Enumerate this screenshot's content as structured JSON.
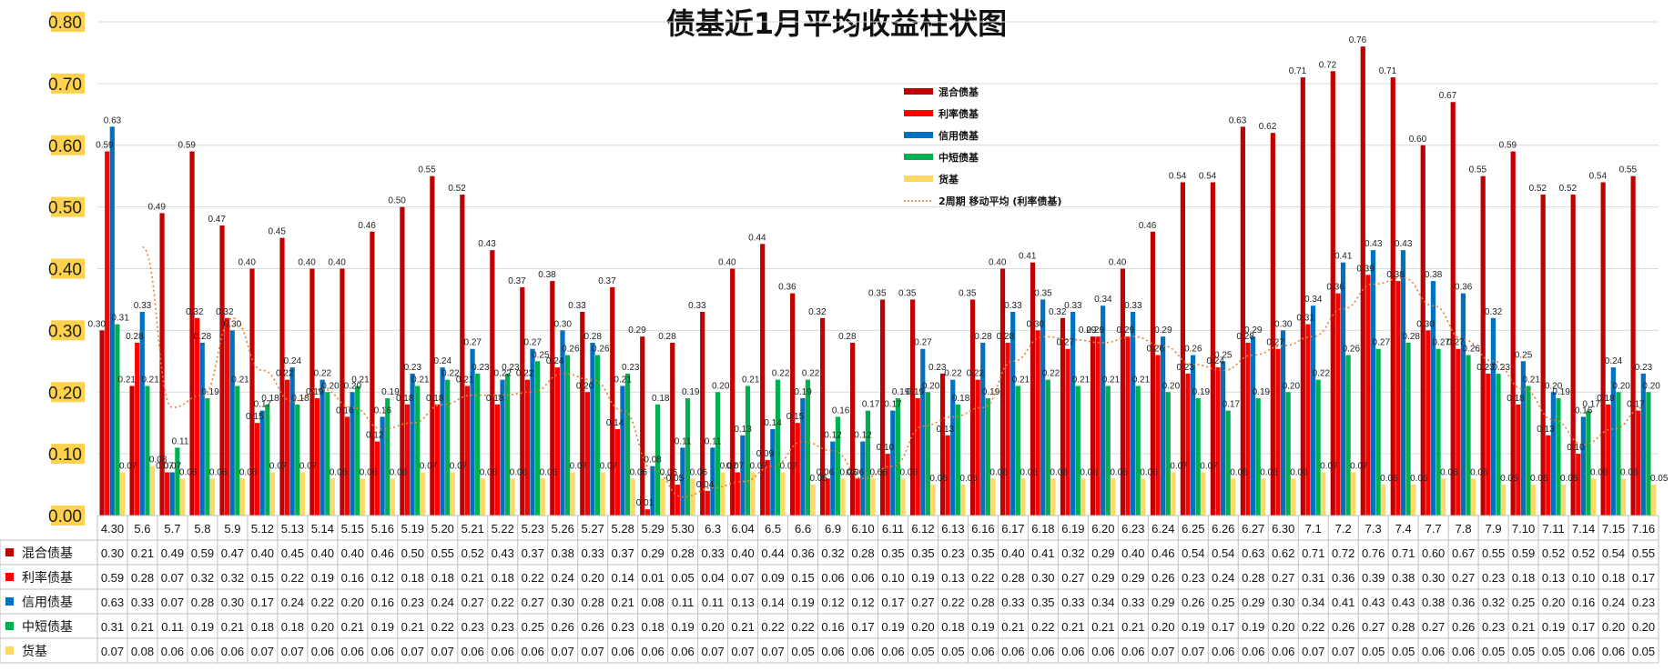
{
  "chart_data": {
    "type": "bar",
    "title": "债基近1月平均收益柱状图",
    "ylim": [
      0,
      0.8
    ],
    "yticks": [
      "0.00",
      "0.10",
      "0.20",
      "0.30",
      "0.40",
      "0.50",
      "0.60",
      "0.70",
      "0.80"
    ],
    "grid": true,
    "legend_position": "top-center",
    "categories": [
      "4.30",
      "5.6",
      "5.7",
      "5.8",
      "5.9",
      "5.12",
      "5.13",
      "5.14",
      "5.15",
      "5.16",
      "5.19",
      "5.20",
      "5.21",
      "5.22",
      "5.23",
      "5.26",
      "5.27",
      "5.28",
      "5.29",
      "5.30",
      "6.3",
      "6.04",
      "6.5",
      "6.6",
      "6.9",
      "6.10",
      "6.11",
      "6.12",
      "6.13",
      "6.16",
      "6.17",
      "6.18",
      "6.19",
      "6.20",
      "6.23",
      "6.24",
      "6.25",
      "6.26",
      "6.27",
      "6.30",
      "7.1",
      "7.2",
      "7.3",
      "7.4",
      "7.7",
      "7.8",
      "7.9",
      "7.10",
      "7.11",
      "7.14",
      "7.15",
      "7.16"
    ],
    "series": [
      {
        "name": "混合债基",
        "color": "#c00000",
        "values": [
          0.3,
          0.21,
          0.49,
          0.59,
          0.47,
          0.4,
          0.45,
          0.4,
          0.4,
          0.46,
          0.5,
          0.55,
          0.52,
          0.43,
          0.37,
          0.38,
          0.33,
          0.37,
          0.29,
          0.28,
          0.33,
          0.4,
          0.44,
          0.36,
          0.32,
          0.28,
          0.35,
          0.35,
          0.23,
          0.35,
          0.4,
          0.41,
          0.32,
          0.29,
          0.4,
          0.46,
          0.54,
          0.54,
          0.63,
          0.62,
          0.71,
          0.72,
          0.76,
          0.71,
          0.6,
          0.67,
          0.55,
          0.59,
          0.52,
          0.52,
          0.54,
          0.55
        ]
      },
      {
        "name": "利率债基",
        "color": "#ff0000",
        "values": [
          0.59,
          0.28,
          0.07,
          0.32,
          0.32,
          0.15,
          0.22,
          0.19,
          0.16,
          0.12,
          0.18,
          0.18,
          0.21,
          0.18,
          0.22,
          0.24,
          0.2,
          0.14,
          0.01,
          0.05,
          0.04,
          0.07,
          0.09,
          0.15,
          0.06,
          0.06,
          0.1,
          0.19,
          0.13,
          0.22,
          0.28,
          0.3,
          0.27,
          0.29,
          0.29,
          0.26,
          0.23,
          0.24,
          0.28,
          0.27,
          0.31,
          0.36,
          0.39,
          0.38,
          0.3,
          0.27,
          0.23,
          0.18,
          0.13,
          0.1,
          0.18,
          0.17
        ]
      },
      {
        "name": "信用债基",
        "color": "#0070c0",
        "values": [
          0.63,
          0.33,
          0.07,
          0.28,
          0.3,
          0.17,
          0.24,
          0.22,
          0.2,
          0.16,
          0.23,
          0.24,
          0.27,
          0.22,
          0.27,
          0.3,
          0.28,
          0.21,
          0.08,
          0.11,
          0.11,
          0.13,
          0.14,
          0.19,
          0.12,
          0.12,
          0.17,
          0.27,
          0.22,
          0.28,
          0.33,
          0.35,
          0.33,
          0.34,
          0.33,
          0.29,
          0.26,
          0.25,
          0.29,
          0.3,
          0.34,
          0.41,
          0.43,
          0.43,
          0.38,
          0.36,
          0.32,
          0.25,
          0.2,
          0.16,
          0.24,
          0.23
        ]
      },
      {
        "name": "中短债基",
        "color": "#00b050",
        "values": [
          0.31,
          0.21,
          0.11,
          0.19,
          0.21,
          0.18,
          0.18,
          0.2,
          0.21,
          0.19,
          0.21,
          0.22,
          0.23,
          0.23,
          0.25,
          0.26,
          0.26,
          0.23,
          0.18,
          0.19,
          0.2,
          0.21,
          0.22,
          0.22,
          0.16,
          0.17,
          0.19,
          0.2,
          0.18,
          0.19,
          0.21,
          0.22,
          0.21,
          0.21,
          0.21,
          0.2,
          0.19,
          0.17,
          0.19,
          0.2,
          0.22,
          0.26,
          0.27,
          0.28,
          0.27,
          0.26,
          0.23,
          0.21,
          0.19,
          0.17,
          0.2,
          0.2
        ]
      },
      {
        "name": "货基",
        "color": "#ffd966",
        "values": [
          0.07,
          0.08,
          0.06,
          0.06,
          0.06,
          0.07,
          0.07,
          0.06,
          0.06,
          0.06,
          0.07,
          0.07,
          0.06,
          0.06,
          0.06,
          0.07,
          0.07,
          0.06,
          0.06,
          0.06,
          0.07,
          0.07,
          0.07,
          0.05,
          0.06,
          0.06,
          0.06,
          0.05,
          0.05,
          0.06,
          0.06,
          0.06,
          0.06,
          0.06,
          0.06,
          0.07,
          0.07,
          0.06,
          0.06,
          0.06,
          0.07,
          0.07,
          0.05,
          0.05,
          0.06,
          0.06,
          0.05,
          0.05,
          0.05,
          0.06,
          0.06,
          0.05
        ]
      }
    ],
    "trendline": {
      "name": "2周期 移动平均 (利率债基)",
      "series": "利率债基",
      "period": 2,
      "color": "#ed7d31"
    }
  }
}
